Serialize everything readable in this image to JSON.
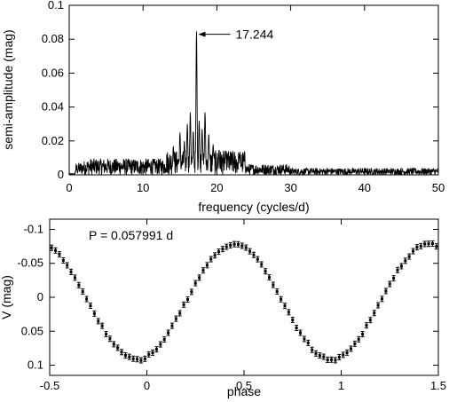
{
  "chart_data": [
    {
      "type": "line",
      "xlabel": "frequency (cycles/d)",
      "ylabel": "semi-amplitude (mag)",
      "xlim": [
        0,
        50
      ],
      "ylim": [
        0,
        0.1
      ],
      "xticks": [
        0,
        10,
        20,
        30,
        40,
        50
      ],
      "xtick_labels": [
        "0",
        "10",
        "20",
        "30",
        "40",
        "50"
      ],
      "yticks": [
        0,
        0.02,
        0.04,
        0.06,
        0.08,
        0.1
      ],
      "ytick_labels": [
        "0",
        "0.02",
        "0.04",
        "0.06",
        "0.08",
        "0.1"
      ],
      "grid": false,
      "annotation": {
        "text": "17.244",
        "x": 17.244,
        "y": 0.085
      },
      "peaks": [
        {
          "x": 14.1,
          "y": 0.017
        },
        {
          "x": 15.0,
          "y": 0.025
        },
        {
          "x": 15.6,
          "y": 0.02
        },
        {
          "x": 16.0,
          "y": 0.03
        },
        {
          "x": 16.4,
          "y": 0.037
        },
        {
          "x": 16.8,
          "y": 0.026
        },
        {
          "x": 17.244,
          "y": 0.085
        },
        {
          "x": 17.6,
          "y": 0.032
        },
        {
          "x": 18.0,
          "y": 0.027
        },
        {
          "x": 18.4,
          "y": 0.037
        },
        {
          "x": 18.9,
          "y": 0.024
        },
        {
          "x": 19.5,
          "y": 0.018
        },
        {
          "x": 20.3,
          "y": 0.015
        },
        {
          "x": 21.2,
          "y": 0.012
        },
        {
          "x": 23.0,
          "y": 0.011
        }
      ]
    },
    {
      "type": "scatter",
      "xlabel": "phase",
      "ylabel": "V (mag)",
      "annotation": "P = 0.057991 d",
      "xlim": [
        -0.5,
        1.5
      ],
      "ylim": [
        0.115,
        -0.115
      ],
      "y_inverted": true,
      "xticks": [
        -0.5,
        0,
        0.5,
        1,
        1.5
      ],
      "xtick_labels": [
        "-0.5",
        "0",
        "0.5",
        "1",
        "1.5"
      ],
      "yticks": [
        -0.1,
        -0.05,
        0,
        0.05,
        0.1
      ],
      "ytick_labels": [
        "-0.1",
        "-0.05",
        "0",
        "0.05",
        "0.1"
      ],
      "grid": false,
      "mean": 0.007,
      "semi_amplitude": 0.085,
      "max_light_phase": 0.45,
      "points_per_cycle": 50
    }
  ]
}
